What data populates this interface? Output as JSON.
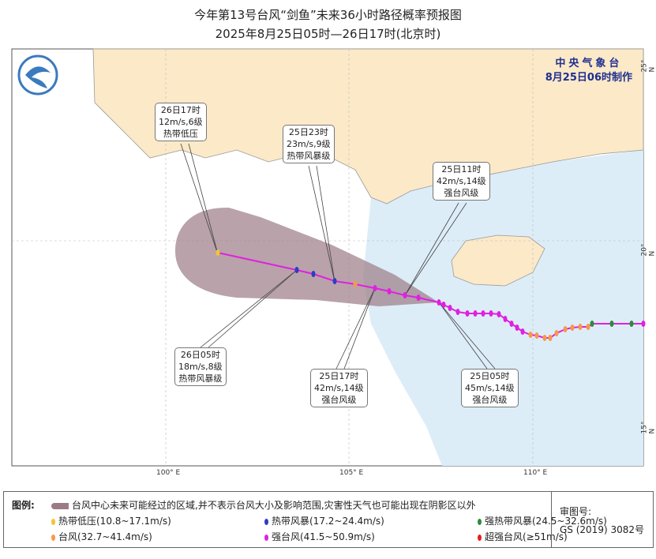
{
  "title": "今年第13号台风“剑鱼”未来36小时路径概率预报图",
  "subtitle": "2025年8月25日05时—26日17时(北京时)",
  "agency": "中央气象台",
  "made": "8月25日06时制作",
  "axes": {
    "lon": [
      "100° E",
      "105° E",
      "110° E"
    ],
    "lat": [
      "25° N",
      "20° N",
      "15° N"
    ]
  },
  "forecast_labels": [
    {
      "time": "26日17时",
      "wind": "12m/s,6级",
      "level": "热带低压"
    },
    {
      "time": "25日23时",
      "wind": "23m/s,9级",
      "level": "热带风暴级"
    },
    {
      "time": "25日11时",
      "wind": "42m/s,14级",
      "level": "强台风级"
    },
    {
      "time": "26日05时",
      "wind": "18m/s,8级",
      "level": "热带风暴级"
    },
    {
      "time": "25日17时",
      "wind": "42m/s,14级",
      "level": "强台风级"
    },
    {
      "time": "25日05时",
      "wind": "45m/s,14级",
      "level": "强台风级"
    }
  ],
  "legend": {
    "label": "图例:",
    "cone": "台风中心未来可能经过的区域,并不表示台风大小及影响范围,灾害性天气也可能出现在阴影区以外",
    "items": [
      {
        "text": "热带低压(10.8~17.1m/s)",
        "color": "#f2c530"
      },
      {
        "text": "热带风暴(17.2~24.4m/s)",
        "color": "#2b3fbf"
      },
      {
        "text": "强热带风暴(24.5~32.6m/s)",
        "color": "#2e8b3a"
      },
      {
        "text": "台风(32.7~41.4m/s)",
        "color": "#f59a4a"
      },
      {
        "text": "强台风(41.5~50.9m/s)",
        "color": "#e020e0"
      },
      {
        "text": "超强台风(≥51m/s)",
        "color": "#e02020"
      }
    ],
    "review_label": "审图号:",
    "review_no": "GS (2019) 3082号"
  },
  "colors": {
    "land_china": "#fbe9c8",
    "sea": "#dcedf8",
    "cone": "#9b7b86",
    "track": "#e020e0"
  }
}
